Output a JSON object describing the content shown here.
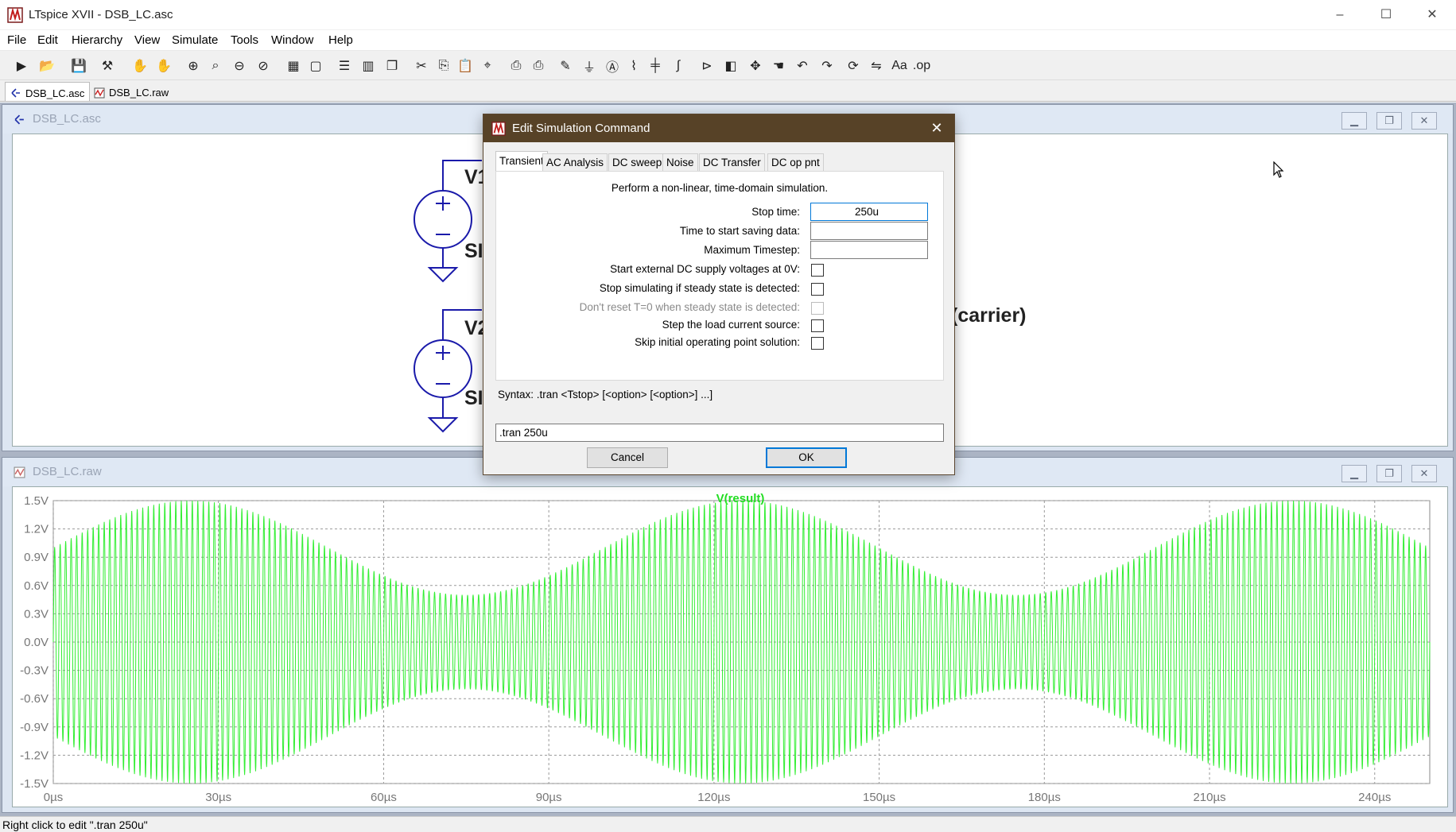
{
  "window": {
    "title": "LTspice XVII - DSB_LC.asc",
    "minimize": "–",
    "maximize": "☐",
    "close": "✕"
  },
  "menu": {
    "items": [
      "File",
      "Edit",
      "Hierarchy",
      "View",
      "Simulate",
      "Tools",
      "Window",
      "Help"
    ]
  },
  "toolbar": {
    "icons": [
      "run-icon",
      "open-icon",
      "save-icon",
      "control-panel-icon",
      "halt-icon",
      "pan-icon",
      "zoom-in-icon",
      "zoom-area-icon",
      "zoom-out-icon",
      "zoom-cancel-icon",
      "autorange-icon",
      "pick-visible-icon",
      "tile-horizontal-icon",
      "tile-vertical-icon",
      "cascade-icon",
      "cut-icon",
      "copy-icon",
      "paste-icon",
      "find-icon",
      "print-icon",
      "print-setup-icon",
      "draw-wire-icon",
      "ground-icon",
      "label-net-icon",
      "resistor-icon",
      "capacitor-icon",
      "inductor-icon",
      "diode-icon",
      "component-icon",
      "move-icon",
      "drag-icon",
      "undo-icon",
      "redo-icon",
      "rotate-icon",
      "mirror-icon",
      "text-icon",
      "spice-directive-icon"
    ]
  },
  "doc_tabs": [
    {
      "label": "DSB_LC.asc",
      "active": true
    },
    {
      "label": "DSB_LC.raw",
      "active": false
    }
  ],
  "schematic_window": {
    "title": "DSB_LC.asc",
    "labels": {
      "v1": "V1",
      "v1_value": "SI",
      "v2": "V2",
      "v2_value": "SI",
      "carrier": "(carrier)"
    }
  },
  "waveform_window": {
    "title": "DSB_LC.raw"
  },
  "dialog": {
    "title": "Edit Simulation Command",
    "close": "✕",
    "tabs": [
      "Transient",
      "AC Analysis",
      "DC sweep",
      "Noise",
      "DC Transfer",
      "DC op pnt"
    ],
    "active_tab": "Transient",
    "description": "Perform a non-linear, time-domain simulation.",
    "fields": [
      {
        "label": "Stop time:",
        "value": "250u"
      },
      {
        "label": "Time to start saving data:",
        "value": ""
      },
      {
        "label": "Maximum Timestep:",
        "value": ""
      }
    ],
    "checkboxes": [
      {
        "label": "Start external DC supply voltages at 0V:",
        "checked": false,
        "enabled": true
      },
      {
        "label": "Stop simulating if steady state is detected:",
        "checked": false,
        "enabled": true
      },
      {
        "label": "Don't reset T=0 when steady state is detected:",
        "checked": false,
        "enabled": false
      },
      {
        "label": "Step the load current source:",
        "checked": false,
        "enabled": true
      },
      {
        "label": "Skip initial operating point solution:",
        "checked": false,
        "enabled": true
      }
    ],
    "syntax": "Syntax:  .tran <Tstop> [<option> [<option>] ...]",
    "command": ".tran 250u",
    "cancel": "Cancel",
    "ok": "OK"
  },
  "status_bar": {
    "text": "Right click to edit \".tran 250u\""
  },
  "chart_data": {
    "type": "line",
    "title": "V(result)",
    "series": [
      {
        "name": "V(result)",
        "color": "#33ee33"
      }
    ],
    "x_ticks": [
      "0µs",
      "30µs",
      "60µs",
      "90µs",
      "120µs",
      "150µs",
      "180µs",
      "210µs",
      "240µs"
    ],
    "y_ticks": [
      "1.5V",
      "1.2V",
      "0.9V",
      "0.6V",
      "0.3V",
      "0.0V",
      "-0.3V",
      "-0.6V",
      "-0.9V",
      "-1.2V",
      "-1.5V"
    ],
    "xlim": [
      0,
      250
    ],
    "ylim": [
      -1.5,
      1.5
    ],
    "x_unit": "µs",
    "y_unit": "V",
    "grid": true,
    "signal": {
      "carrier_cycles_approx": 250,
      "envelope_max": 1.5,
      "envelope_min": 0.5,
      "envelope_peaks_us": [
        25,
        125,
        225
      ],
      "envelope_troughs_us": [
        75,
        175
      ]
    }
  }
}
